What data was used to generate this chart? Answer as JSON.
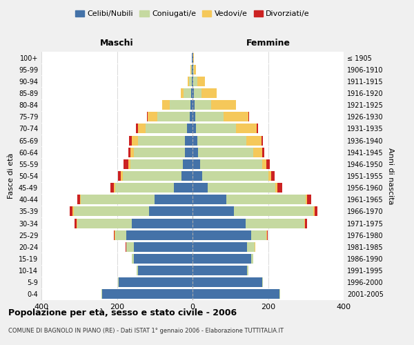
{
  "age_groups": [
    "0-4",
    "5-9",
    "10-14",
    "15-19",
    "20-24",
    "25-29",
    "30-34",
    "35-39",
    "40-44",
    "45-49",
    "50-54",
    "55-59",
    "60-64",
    "65-69",
    "70-74",
    "75-79",
    "80-84",
    "85-89",
    "90-94",
    "95-99",
    "100+"
  ],
  "birth_years": [
    "2001-2005",
    "1996-2000",
    "1991-1995",
    "1986-1990",
    "1981-1985",
    "1976-1980",
    "1971-1975",
    "1966-1970",
    "1961-1965",
    "1956-1960",
    "1951-1955",
    "1946-1950",
    "1941-1945",
    "1936-1940",
    "1931-1935",
    "1926-1930",
    "1921-1925",
    "1916-1920",
    "1911-1915",
    "1906-1910",
    "≤ 1905"
  ],
  "male": {
    "celibi": [
      240,
      195,
      145,
      155,
      155,
      175,
      160,
      115,
      100,
      50,
      30,
      25,
      20,
      20,
      15,
      8,
      5,
      3,
      2,
      1,
      1
    ],
    "coniugati": [
      2,
      2,
      3,
      5,
      20,
      30,
      145,
      200,
      195,
      155,
      155,
      140,
      135,
      125,
      110,
      85,
      55,
      20,
      8,
      3,
      1
    ],
    "vedovi": [
      0,
      0,
      0,
      0,
      1,
      2,
      2,
      2,
      2,
      3,
      5,
      5,
      10,
      15,
      20,
      25,
      20,
      8,
      3,
      1,
      0
    ],
    "divorziati": [
      0,
      0,
      0,
      0,
      1,
      2,
      5,
      8,
      8,
      10,
      8,
      12,
      5,
      8,
      5,
      2,
      0,
      0,
      0,
      0,
      0
    ]
  },
  "female": {
    "nubili": [
      230,
      185,
      145,
      155,
      145,
      155,
      140,
      110,
      90,
      40,
      25,
      20,
      15,
      12,
      10,
      8,
      5,
      4,
      2,
      1,
      1
    ],
    "coniugate": [
      2,
      2,
      3,
      5,
      20,
      40,
      155,
      210,
      210,
      180,
      175,
      165,
      145,
      130,
      105,
      75,
      45,
      20,
      10,
      3,
      1
    ],
    "vedove": [
      0,
      0,
      0,
      0,
      1,
      2,
      3,
      3,
      4,
      5,
      8,
      10,
      25,
      40,
      55,
      65,
      65,
      40,
      20,
      5,
      2
    ],
    "divorziate": [
      0,
      0,
      0,
      0,
      1,
      2,
      5,
      8,
      10,
      12,
      10,
      10,
      5,
      5,
      3,
      2,
      0,
      0,
      0,
      0,
      0
    ]
  },
  "colors": {
    "celibi": "#4472a8",
    "coniugati": "#c5d9a0",
    "vedovi": "#f5c85a",
    "divorziati": "#cc2222"
  },
  "title": "Popolazione per età, sesso e stato civile - 2006",
  "subtitle": "COMUNE DI BAGNOLO IN PIANO (RE) - Dati ISTAT 1° gennaio 2006 - Elaborazione TUTTITALIA.IT",
  "xlabel_left": "Maschi",
  "xlabel_right": "Femmine",
  "ylabel_left": "Fasce di età",
  "ylabel_right": "Anni di nascita",
  "xlim": 400,
  "background_color": "#f0f0f0",
  "plot_bg": "#ffffff"
}
